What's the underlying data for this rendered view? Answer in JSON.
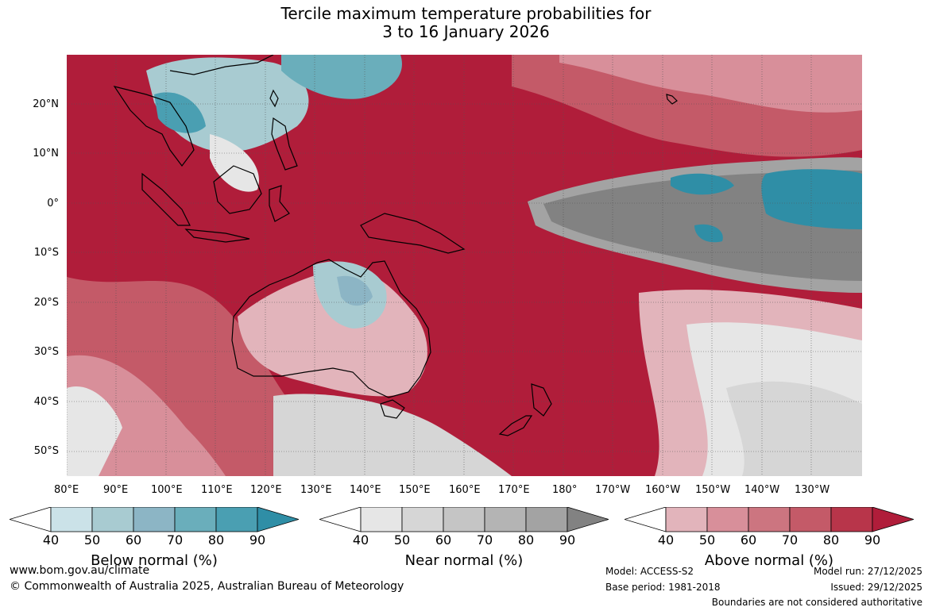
{
  "title_line1": "Tercile maximum temperature probabilities for",
  "title_line2": "3 to 16 January 2026",
  "map": {
    "lon_labels": [
      "80°E",
      "90°E",
      "100°E",
      "110°E",
      "120°E",
      "130°E",
      "140°E",
      "150°E",
      "160°E",
      "170°E",
      "180°",
      "170°W",
      "160°W",
      "150°W",
      "140°W",
      "130°W"
    ],
    "lat_labels": [
      "20°N",
      "10°N",
      "0°",
      "10°S",
      "20°S",
      "30°S",
      "40°S",
      "50°S"
    ],
    "land_outline_color": "#000000"
  },
  "colorbars": [
    {
      "title": "Below normal (%)",
      "ticks": [
        "40",
        "50",
        "60",
        "70",
        "80",
        "90"
      ],
      "colors": [
        "#ffffff",
        "#cbe2e8",
        "#a8cbd1",
        "#8cb5c5",
        "#6aaebb",
        "#4a9fb2",
        "#2f8ea6"
      ]
    },
    {
      "title": "Near normal (%)",
      "ticks": [
        "40",
        "50",
        "60",
        "70",
        "80",
        "90"
      ],
      "colors": [
        "#ffffff",
        "#e6e6e6",
        "#d6d6d6",
        "#c5c5c5",
        "#b4b4b4",
        "#a3a3a3",
        "#828282"
      ]
    },
    {
      "title": "Above normal (%)",
      "ticks": [
        "40",
        "50",
        "60",
        "70",
        "80",
        "90"
      ],
      "colors": [
        "#ffffff",
        "#e2b4bb",
        "#d88f9a",
        "#cc7580",
        "#c45a68",
        "#b8354a",
        "#b01d3a"
      ]
    }
  ],
  "footer": {
    "url": "www.bom.gov.au/climate",
    "copyright": "© Commonwealth of Australia 2025, Australian Bureau of Meteorology",
    "model": "Model: ACCESS-S2",
    "base_period": "Base period: 1981-2018",
    "model_run": "Model run: 27/12/2025",
    "issued": "Issued: 29/12/2025",
    "disclaimer": "Boundaries are not considered authoritative"
  }
}
